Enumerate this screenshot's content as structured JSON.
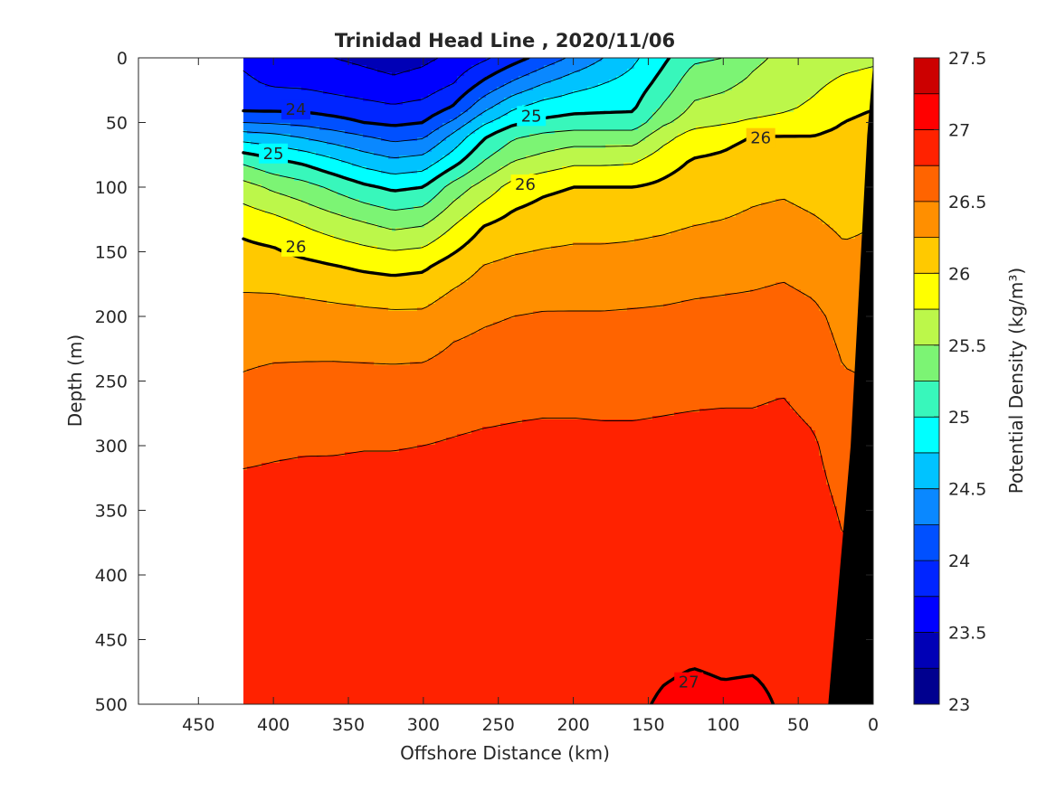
{
  "chart_data": {
    "type": "heatmap",
    "title": "Trinidad Head Line , 2020/11/06",
    "xlabel": "Offshore Distance (km)",
    "ylabel": "Depth (m)",
    "colorbar_label": "Potential Density (kg/m³)",
    "xlim": [
      490,
      0
    ],
    "ylim": [
      0,
      500
    ],
    "x_ticks": [
      450,
      400,
      350,
      300,
      250,
      200,
      150,
      100,
      50,
      0
    ],
    "y_ticks": [
      0,
      50,
      100,
      150,
      200,
      250,
      300,
      350,
      400,
      450,
      500
    ],
    "colorbar_ticks": [
      "27.5",
      "27",
      "26.5",
      "26",
      "25.5",
      "25",
      "24.5",
      "24",
      "23.5",
      "23"
    ],
    "colorbar_range": [
      23,
      27.5
    ],
    "contour_levels": [
      23,
      23.25,
      23.5,
      23.75,
      24,
      24.25,
      24.5,
      24.75,
      25,
      25.25,
      25.5,
      25.75,
      26,
      26.25,
      26.5,
      26.75,
      27,
      27.25,
      27.5
    ],
    "contour_labels": [
      {
        "text": "24",
        "x": 385,
        "y": 40
      },
      {
        "text": "25",
        "x": 400,
        "y": 74
      },
      {
        "text": "26",
        "x": 385,
        "y": 146
      },
      {
        "text": "25",
        "x": 228,
        "y": 45
      },
      {
        "text": "26",
        "x": 232,
        "y": 98
      },
      {
        "text": "26",
        "x": 75,
        "y": 62
      },
      {
        "text": "27",
        "x": 123,
        "y": 483
      }
    ],
    "data_extent_km": [
      420,
      0
    ],
    "series": [],
    "colors": [
      "#00008f",
      "#0000b6",
      "#0000ff",
      "#0025ff",
      "#0050ff",
      "#0a88ff",
      "#00c3ff",
      "#00ffff",
      "#38f7bb",
      "#7cf474",
      "#bcf74a",
      "#ffff00",
      "#ffc900",
      "#ff8f00",
      "#ff6400",
      "#ff2200",
      "#ff0000",
      "#cc0000",
      "#a40000"
    ],
    "bathymetry_color": "#000000",
    "grid": false,
    "legend": "colorbar-right"
  }
}
